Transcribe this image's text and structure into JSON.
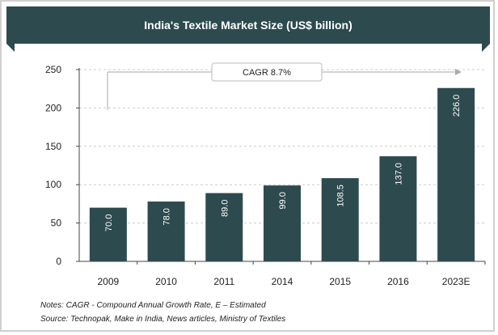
{
  "chart_data": {
    "type": "bar",
    "title": "India's Textile Market Size (US$ billion)",
    "categories": [
      "2009",
      "2010",
      "2011",
      "2014",
      "2015",
      "2016",
      "2023E"
    ],
    "values": [
      70.0,
      78.0,
      89.0,
      99.0,
      108.5,
      137.0,
      226.0
    ],
    "value_labels": [
      "70.0",
      "78.0",
      "89.0",
      "99.0",
      "108.5",
      "137.0",
      "226.0"
    ],
    "ylim": [
      0,
      250
    ],
    "yticks": [
      0,
      50,
      100,
      150,
      200,
      250
    ],
    "grid": true,
    "annotation": "CAGR 8.7%",
    "colors": {
      "bar": "#2d4a4f",
      "title_bg": "#2d4a4f",
      "grid": "#cccccc",
      "arrow": "#aaaaaa"
    }
  },
  "footer": {
    "notes": "Notes: CAGR - Compound Annual Growth Rate, E – Estimated",
    "source": "Source: Technopak, Make in India, News articles, Ministry of Textiles"
  }
}
